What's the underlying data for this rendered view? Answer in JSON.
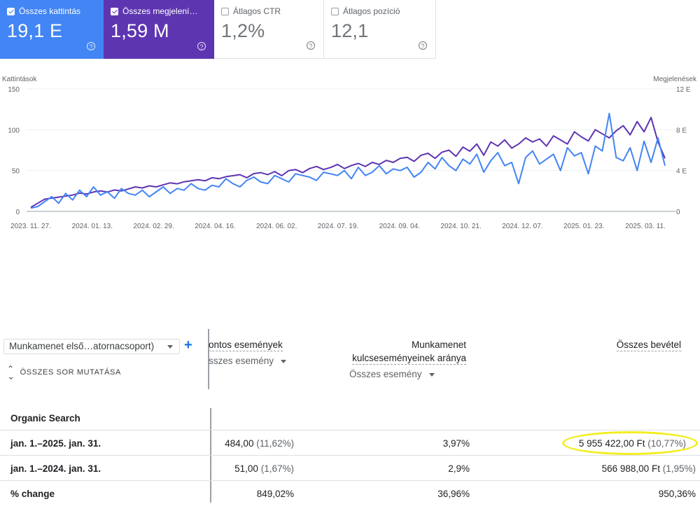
{
  "metrics": [
    {
      "label": "Összes kattintás",
      "value": "19,1 E",
      "checked": true,
      "color": "#4285f4"
    },
    {
      "label": "Összes megjelení…",
      "value": "1,59 M",
      "checked": true,
      "color": "#5e35b1"
    },
    {
      "label": "Átlagos CTR",
      "value": "1,2%",
      "checked": false
    },
    {
      "label": "Átlagos pozíció",
      "value": "12,1",
      "checked": false
    }
  ],
  "chart_data": {
    "type": "line",
    "y_left_label": "Kattintások",
    "y_right_label": "Megjelenések",
    "y_left_ticks": [
      "150",
      "100",
      "50",
      "0"
    ],
    "y_right_ticks": [
      "12 E",
      "8 E",
      "4 E",
      "0"
    ],
    "ylim_left": [
      0,
      150
    ],
    "ylim_right": [
      0,
      12000
    ],
    "x_ticks": [
      "2023. 11. 27.",
      "2024. 01. 13.",
      "2024. 02. 29.",
      "2024. 04. 16.",
      "2024. 06. 02.",
      "2024. 07. 19.",
      "2024. 09. 04.",
      "2024. 10. 21.",
      "2024. 12. 07.",
      "2025. 01. 23.",
      "2025. 03. 11."
    ],
    "series": [
      {
        "name": "Kattintások",
        "axis": "left",
        "color": "#4285f4",
        "values": [
          4,
          6,
          12,
          18,
          10,
          22,
          14,
          26,
          18,
          30,
          20,
          24,
          16,
          28,
          22,
          20,
          26,
          18,
          24,
          30,
          22,
          28,
          26,
          34,
          28,
          26,
          32,
          30,
          40,
          34,
          30,
          38,
          42,
          36,
          34,
          44,
          40,
          36,
          46,
          44,
          42,
          38,
          48,
          46,
          44,
          50,
          40,
          54,
          44,
          48,
          56,
          46,
          52,
          50,
          54,
          42,
          48,
          60,
          52,
          66,
          56,
          50,
          64,
          58,
          70,
          48,
          62,
          72,
          56,
          60,
          34,
          66,
          74,
          58,
          64,
          70,
          50,
          78,
          68,
          72,
          46,
          80,
          74,
          120,
          66,
          62,
          78,
          50,
          86,
          60,
          90,
          56
        ]
      },
      {
        "name": "Megjelenések",
        "axis": "right",
        "color": "#5e35b1",
        "values": [
          400,
          800,
          1200,
          1300,
          1400,
          1500,
          1600,
          1800,
          1700,
          1900,
          2000,
          1900,
          2100,
          2000,
          2200,
          2400,
          2300,
          2500,
          2400,
          2600,
          2800,
          2700,
          2900,
          3000,
          3100,
          3000,
          3300,
          3200,
          3400,
          3500,
          3600,
          3300,
          3700,
          3800,
          3600,
          3900,
          3500,
          4000,
          4100,
          3800,
          4200,
          4400,
          4100,
          4300,
          4600,
          4200,
          4500,
          4700,
          4400,
          4800,
          4600,
          5000,
          4800,
          5200,
          5300,
          4900,
          5500,
          5700,
          5200,
          5800,
          6000,
          5400,
          6300,
          5900,
          6600,
          5500,
          6800,
          6400,
          7000,
          6200,
          6600,
          7200,
          6800,
          7100,
          6400,
          7400,
          7000,
          6600,
          7800,
          7300,
          6900,
          8000,
          7600,
          7200,
          7900,
          8400,
          7500,
          8800,
          7800,
          9200,
          6800,
          5200
        ]
      }
    ],
    "grid": true
  },
  "table": {
    "dimension_select": "Munkamenet első…atornacsoport)",
    "show_all": "ÖSSZES SOR MUTATÁSA",
    "add_symbol": "+",
    "columns": [
      {
        "title": "ontos események",
        "sub": "sszes esemény"
      },
      {
        "title1": "Munkamenet",
        "title2": "kulcseseményeinek aránya",
        "sub": "Összes esemény"
      },
      {
        "title": "Összes bevétel"
      }
    ],
    "group_label": "Organic Search",
    "rows": [
      {
        "label": "jan. 1.–2025. jan. 31.",
        "c1": "484,00",
        "c1p": "(11,62%)",
        "c2": "3,97%",
        "c3": "5 955 422,00 Ft",
        "c3p": "(10,77%)"
      },
      {
        "label": "jan. 1.–2024. jan. 31.",
        "c1": "51,00",
        "c1p": "(1,67%)",
        "c2": "2,9%",
        "c3": "566 988,00 Ft",
        "c3p": "(1,95%)"
      },
      {
        "label": "% change",
        "c1": "849,02%",
        "c1p": "",
        "c2": "36,96%",
        "c3": "950,36%",
        "c3p": ""
      }
    ]
  }
}
